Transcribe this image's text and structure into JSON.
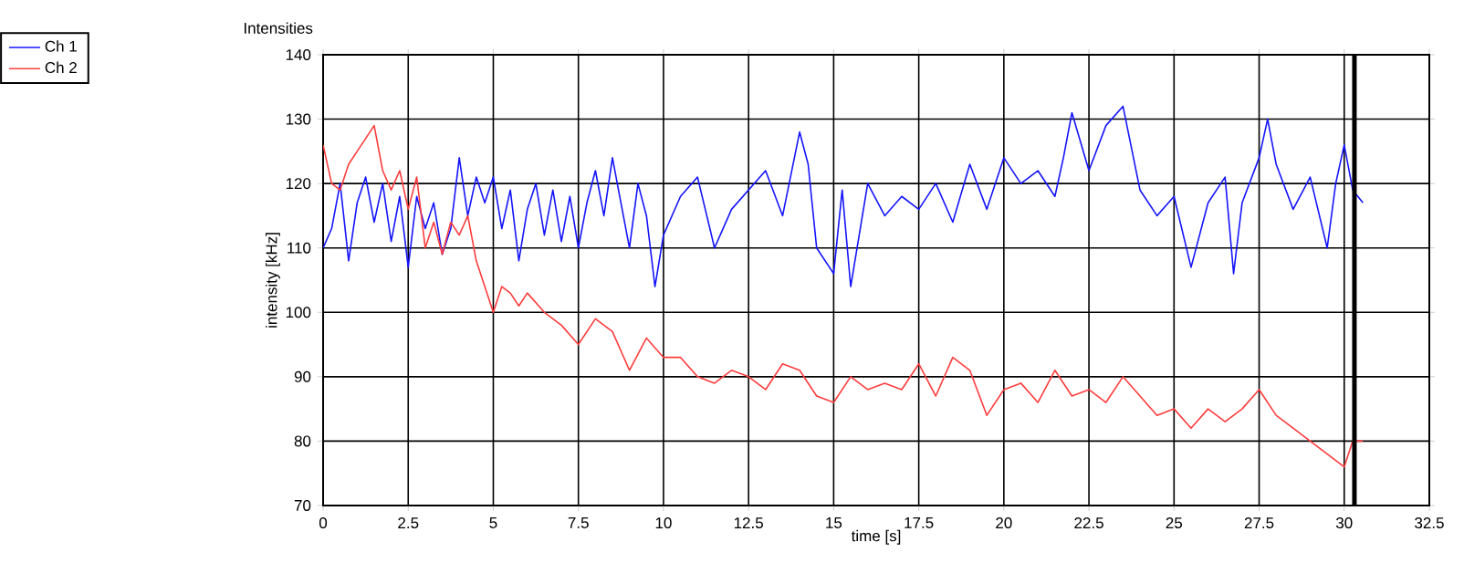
{
  "chart_data": {
    "type": "line",
    "title": "Intensities",
    "xlabel": "time [s]",
    "ylabel": "intensity [kHz]",
    "xlim": [
      0,
      32.5
    ],
    "ylim": [
      70,
      140
    ],
    "xticks": [
      0,
      2.5,
      5,
      7.5,
      10,
      12.5,
      15,
      17.5,
      20,
      22.5,
      25,
      27.5,
      30,
      32.5
    ],
    "yticks": [
      70,
      80,
      90,
      100,
      110,
      120,
      130,
      140
    ],
    "grid": true,
    "legend": "top left",
    "marker": "none",
    "line_style": "solid",
    "ref_lines": [
      {
        "axis": "x",
        "value": 30.3,
        "color": "#000000"
      }
    ],
    "series": [
      {
        "name": "Ch 1",
        "color": "#1414ff",
        "x": [
          0,
          0.25,
          0.5,
          0.75,
          1,
          1.25,
          1.5,
          1.75,
          2,
          2.25,
          2.5,
          2.75,
          3,
          3.25,
          3.5,
          3.75,
          4,
          4.25,
          4.5,
          4.75,
          5,
          5.25,
          5.5,
          5.75,
          6,
          6.25,
          6.5,
          6.75,
          7,
          7.25,
          7.5,
          7.75,
          8,
          8.25,
          8.5,
          8.75,
          9,
          9.25,
          9.5,
          9.75,
          10,
          10.5,
          11,
          11.5,
          12,
          12.5,
          13,
          13.5,
          14,
          14.25,
          14.5,
          15,
          15.25,
          15.5,
          16,
          16.5,
          17,
          17.5,
          18,
          18.5,
          19,
          19.5,
          20,
          20.5,
          21,
          21.5,
          21.75,
          22,
          22.5,
          23,
          23.5,
          24,
          24.5,
          25,
          25.5,
          26,
          26.5,
          26.75,
          27,
          27.5,
          27.75,
          28,
          28.5,
          29,
          29.5,
          29.75,
          30,
          30.25,
          30.55
        ],
        "values": [
          110,
          113,
          120,
          108,
          117,
          121,
          114,
          120,
          111,
          118,
          107,
          118,
          113,
          117,
          109,
          113,
          124,
          115,
          121,
          117,
          121,
          113,
          119,
          108,
          116,
          120,
          112,
          119,
          111,
          118,
          110,
          117,
          122,
          115,
          124,
          117,
          110,
          120,
          115,
          104,
          112,
          118,
          121,
          110,
          116,
          119,
          122,
          115,
          128,
          123,
          110,
          106,
          119,
          104,
          120,
          115,
          118,
          116,
          120,
          114,
          123,
          116,
          124,
          120,
          122,
          118,
          124,
          131,
          122,
          129,
          132,
          119,
          115,
          118,
          107,
          117,
          121,
          106,
          117,
          124,
          130,
          123,
          116,
          121,
          110,
          120,
          126,
          119,
          117
        ]
      },
      {
        "name": "Ch 2",
        "color": "#ff3c3c",
        "x": [
          0,
          0.25,
          0.5,
          0.75,
          1,
          1.25,
          1.5,
          1.75,
          2,
          2.25,
          2.5,
          2.75,
          3,
          3.25,
          3.5,
          3.75,
          4,
          4.25,
          4.5,
          4.75,
          5,
          5.25,
          5.5,
          5.75,
          6,
          6.5,
          7,
          7.5,
          8,
          8.5,
          9,
          9.5,
          10,
          10.5,
          11,
          11.5,
          12,
          12.5,
          13,
          13.5,
          14,
          14.5,
          15,
          15.5,
          16,
          16.5,
          17,
          17.5,
          18,
          18.5,
          19,
          19.5,
          20,
          20.5,
          21,
          21.5,
          22,
          22.5,
          23,
          23.5,
          24,
          24.5,
          25,
          25.5,
          26,
          26.5,
          27,
          27.5,
          28,
          28.5,
          29,
          29.5,
          30,
          30.25,
          30.55
        ],
        "values": [
          126,
          120,
          119,
          123,
          125,
          127,
          129,
          122,
          119,
          122,
          116,
          121,
          110,
          114,
          109,
          114,
          112,
          115,
          108,
          104,
          100,
          104,
          103,
          101,
          103,
          100,
          98,
          95,
          99,
          97,
          91,
          96,
          93,
          93,
          90,
          89,
          91,
          90,
          88,
          92,
          91,
          87,
          86,
          90,
          88,
          89,
          88,
          92,
          87,
          93,
          91,
          84,
          88,
          89,
          86,
          91,
          87,
          88,
          86,
          90,
          87,
          84,
          85,
          82,
          85,
          83,
          85,
          88,
          84,
          82,
          80,
          78,
          76,
          80,
          80
        ]
      }
    ]
  }
}
